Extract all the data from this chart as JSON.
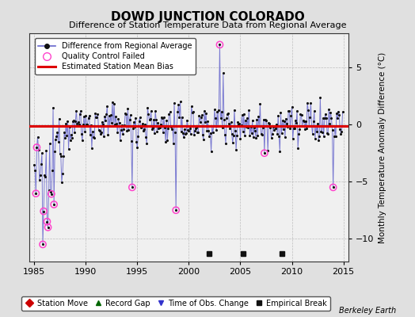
{
  "title": "DOWD JUNCTION COLORADO",
  "subtitle": "Difference of Station Temperature Data from Regional Average",
  "ylabel": "Monthly Temperature Anomaly Difference (°C)",
  "credit": "Berkeley Earth",
  "xlim": [
    1984.5,
    2015.5
  ],
  "ylim": [
    -12,
    8
  ],
  "yticks": [
    -10,
    -5,
    0,
    5
  ],
  "xticks": [
    1985,
    1990,
    1995,
    2000,
    2005,
    2010,
    2015
  ],
  "bias_line_y": -0.15,
  "bias_color": "#dd0000",
  "line_color": "#6666cc",
  "dot_color": "#111111",
  "qc_color": "#ff44cc",
  "bg_color": "#e0e0e0",
  "plot_bg_color": "#f0f0f0",
  "station_move_color": "#cc0000",
  "record_gap_color": "#006600",
  "tobs_color": "#3333cc",
  "empirical_color": "#111111",
  "legend1_labels": [
    "Difference from Regional Average",
    "Quality Control Failed",
    "Estimated Station Mean Bias"
  ],
  "legend2_labels": [
    "Station Move",
    "Record Gap",
    "Time of Obs. Change",
    "Empirical Break"
  ],
  "empirical_breaks": [
    2002.0,
    2005.3,
    2009.0
  ],
  "seed": 12345
}
